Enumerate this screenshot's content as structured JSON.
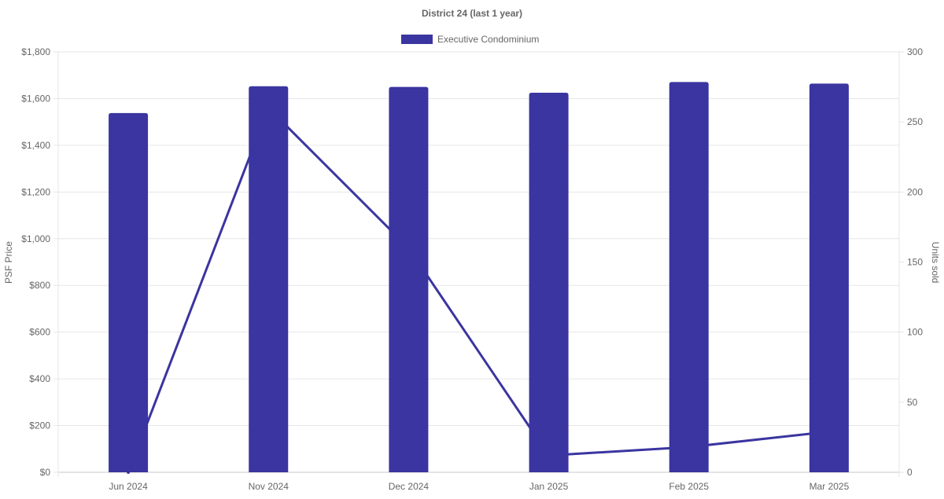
{
  "chart_data": {
    "type": "bar",
    "title": "District 24 (last 1 year)",
    "categories": [
      "Jun 2024",
      "Nov 2024",
      "Dec 2024",
      "Jan 2025",
      "Feb 2025",
      "Mar 2025"
    ],
    "series": [
      {
        "name": "Executive Condominium",
        "type": "bar",
        "axis": "left",
        "color": "#3a35a0",
        "values": [
          1538,
          1653,
          1650,
          1625,
          1671,
          1664
        ]
      },
      {
        "type": "line",
        "axis": "right",
        "color": "#3a35a0",
        "values": [
          0,
          260,
          160,
          12,
          18,
          29
        ]
      }
    ],
    "y_left": {
      "label": "PSF Price",
      "min": 0,
      "max": 1800,
      "step": 200,
      "ticks": [
        "$0",
        "$200",
        "$400",
        "$600",
        "$800",
        "$1,000",
        "$1,200",
        "$1,400",
        "$1,600",
        "$1,800"
      ]
    },
    "y_right": {
      "label": "Units sold",
      "min": 0,
      "max": 300,
      "step": 50,
      "ticks": [
        "0",
        "50",
        "100",
        "150",
        "200",
        "250",
        "300"
      ]
    },
    "legend_position": "top-center",
    "grid": true
  }
}
